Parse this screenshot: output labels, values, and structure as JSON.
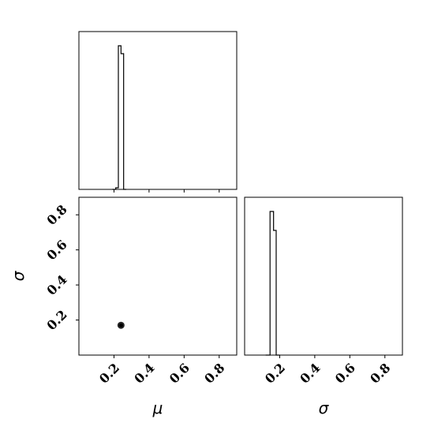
{
  "chart_data": {
    "type": "corner",
    "parameters": [
      "μ",
      "σ"
    ],
    "axis_labels": {
      "mu": "μ",
      "sigma": "σ"
    },
    "range": [
      0.0,
      0.9
    ],
    "ticks": [
      0.2,
      0.4,
      0.6,
      0.8
    ],
    "tick_labels": [
      "0.2",
      "0.4",
      "0.6",
      "0.8"
    ],
    "panels": [
      {
        "panel": "mu-histogram",
        "type": "histogram-step",
        "bins": [
          {
            "x0": 0.19,
            "x1": 0.21,
            "value": 0.0
          },
          {
            "x0": 0.21,
            "x1": 0.225,
            "value": 0.01
          },
          {
            "x0": 0.225,
            "x1": 0.24,
            "value": 0.91
          },
          {
            "x0": 0.24,
            "x1": 0.255,
            "value": 0.86
          },
          {
            "x0": 0.255,
            "x1": 0.27,
            "value": 0.0
          }
        ],
        "ylim": [
          0,
          1.0
        ]
      },
      {
        "panel": "sigma-vs-mu-scatter",
        "type": "scatter",
        "x": 0.24,
        "y": 0.17,
        "point_count": 40,
        "spread": 0.006
      },
      {
        "panel": "sigma-histogram",
        "type": "histogram-step",
        "bins": [
          {
            "x0": 0.12,
            "x1": 0.145,
            "value": 0.0
          },
          {
            "x0": 0.145,
            "x1": 0.165,
            "value": 0.91
          },
          {
            "x0": 0.165,
            "x1": 0.18,
            "value": 0.79
          },
          {
            "x0": 0.18,
            "x1": 0.2,
            "value": 0.0
          }
        ],
        "ylim": [
          0,
          1.0
        ]
      }
    ],
    "grid": false,
    "legend": "none"
  }
}
